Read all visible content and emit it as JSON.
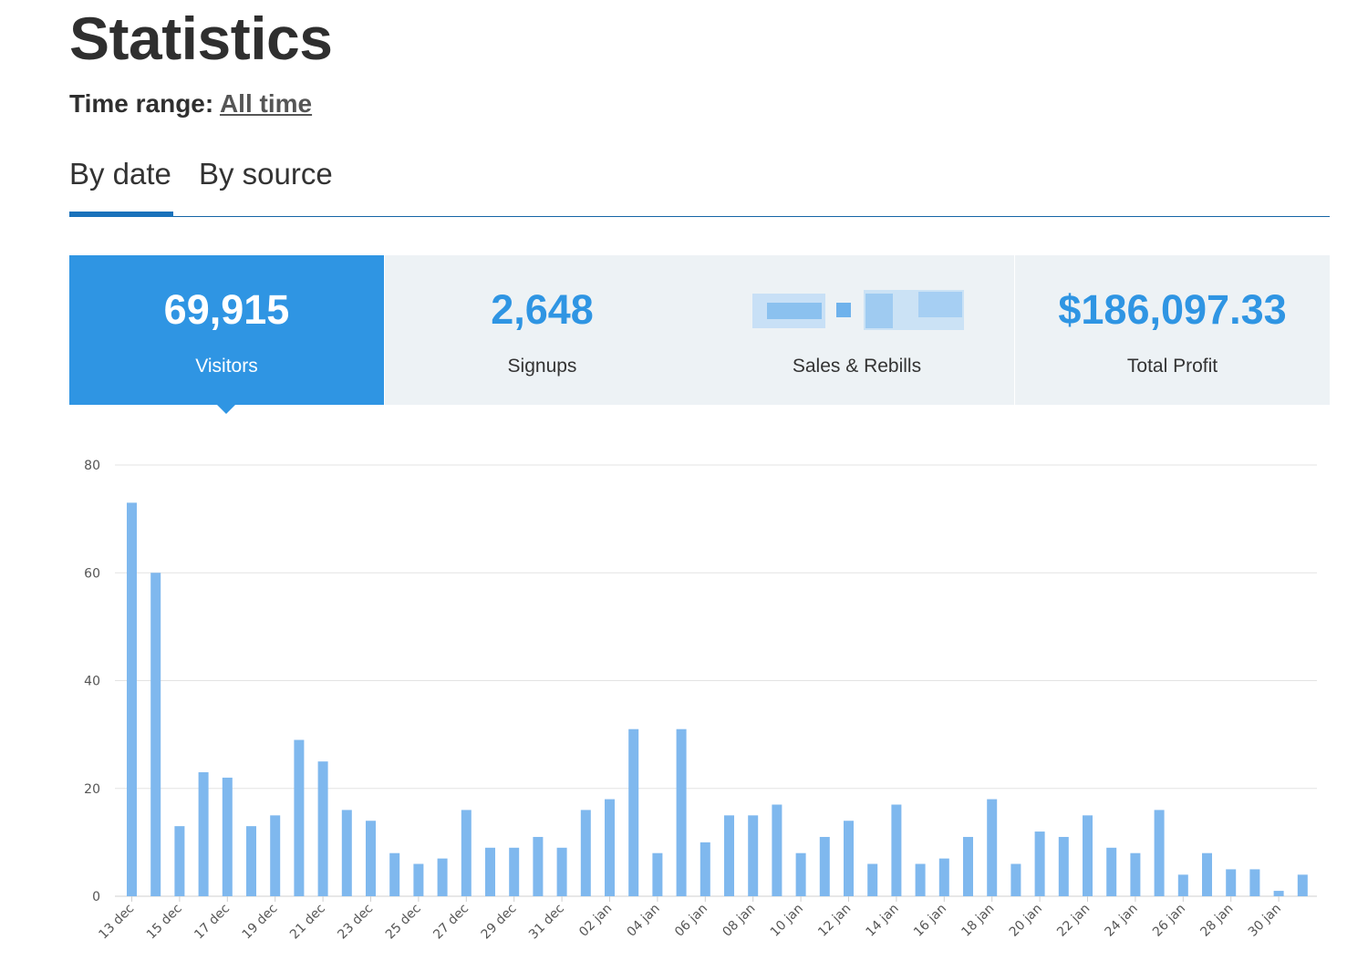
{
  "page": {
    "title": "Statistics"
  },
  "time_range": {
    "label": "Time range:",
    "value": "All time"
  },
  "tabs": [
    {
      "label": "By date",
      "active": true
    },
    {
      "label": "By source",
      "active": false
    }
  ],
  "cards": [
    {
      "value": "69,915",
      "label": "Visitors",
      "active": true
    },
    {
      "value": "2,648",
      "label": "Signups",
      "active": false
    },
    {
      "value": "",
      "label": "Sales & Rebills",
      "active": false,
      "value_redacted": true
    },
    {
      "value": "$186,097.33",
      "label": "Total Profit",
      "active": false
    }
  ],
  "colors": {
    "accent": "#2f95e3",
    "bar": "#7fb8ee",
    "tab_underline": "#1a72bb",
    "card_bg": "#edf2f5"
  },
  "chart_data": {
    "type": "bar",
    "ylim": [
      0,
      80
    ],
    "yticks": [
      0,
      20,
      40,
      60,
      80
    ],
    "grid": true,
    "categories": [
      "13 dec",
      "14 dec",
      "15 dec",
      "16 dec",
      "17 dec",
      "18 dec",
      "19 dec",
      "20 dec",
      "21 dec",
      "22 dec",
      "23 dec",
      "24 dec",
      "25 dec",
      "26 dec",
      "27 dec",
      "28 dec",
      "29 dec",
      "30 dec",
      "31 dec",
      "01 jan",
      "02 jan",
      "03 jan",
      "04 jan",
      "05 jan",
      "06 jan",
      "07 jan",
      "08 jan",
      "09 jan",
      "10 jan",
      "11 jan",
      "12 jan",
      "13 jan",
      "14 jan",
      "15 jan",
      "16 jan",
      "17 jan",
      "18 jan",
      "19 jan",
      "20 jan",
      "21 jan",
      "22 jan",
      "23 jan",
      "24 jan",
      "25 jan",
      "26 jan",
      "27 jan",
      "28 jan",
      "29 jan",
      "30 jan",
      "31 jan"
    ],
    "xtick_labels": [
      "13 dec",
      "15 dec",
      "17 dec",
      "19 dec",
      "21 dec",
      "23 dec",
      "25 dec",
      "27 dec",
      "29 dec",
      "31 dec",
      "02 jan",
      "04 jan",
      "06 jan",
      "08 jan",
      "10 jan",
      "12 jan",
      "14 jan",
      "16 jan",
      "18 jan",
      "20 jan",
      "22 jan",
      "24 jan",
      "26 jan",
      "28 jan",
      "30 jan"
    ],
    "values": [
      73,
      60,
      13,
      23,
      22,
      13,
      15,
      29,
      25,
      16,
      14,
      8,
      6,
      7,
      16,
      9,
      9,
      11,
      9,
      16,
      18,
      31,
      8,
      31,
      10,
      15,
      15,
      17,
      8,
      11,
      14,
      6,
      17,
      6,
      7,
      11,
      18,
      6,
      12,
      11,
      15,
      9,
      8,
      16,
      4,
      8,
      5,
      5,
      1,
      4
    ]
  }
}
